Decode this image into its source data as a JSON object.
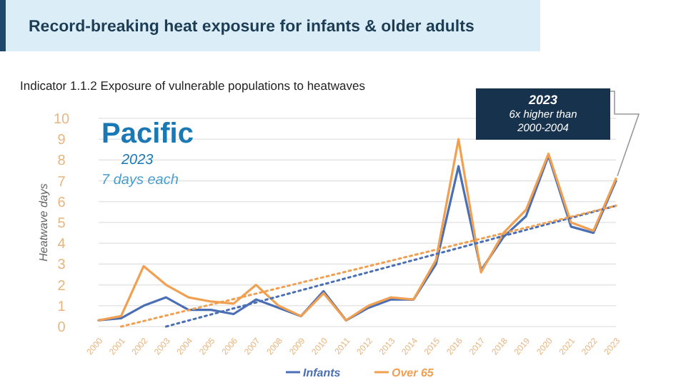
{
  "chart_data": {
    "type": "line",
    "title": "Record-breaking heat exposure for infants & older adults",
    "subtitle": "Indicator 1.1.2 Exposure of vulnerable populations to heatwaves",
    "ylabel": "Heatwave days",
    "x": [
      2000,
      2001,
      2002,
      2003,
      2004,
      2005,
      2006,
      2007,
      2008,
      2009,
      2010,
      2011,
      2012,
      2013,
      2014,
      2015,
      2016,
      2017,
      2018,
      2019,
      2020,
      2021,
      2022,
      2023
    ],
    "xlim": [
      2000,
      2023
    ],
    "xticks": [
      2000,
      2001,
      2002,
      2003,
      2004,
      2005,
      2006,
      2007,
      2008,
      2009,
      2010,
      2011,
      2012,
      2013,
      2014,
      2015,
      2016,
      2017,
      2018,
      2019,
      2020,
      2021,
      2022,
      2023
    ],
    "ylim": [
      0,
      10
    ],
    "yticks": [
      0,
      1,
      2,
      3,
      4,
      5,
      6,
      7,
      8,
      9,
      10
    ],
    "grid": "y",
    "legend": "bottom",
    "marker": "none",
    "series": [
      {
        "name": "Infants",
        "color": "#4a6fb5",
        "values": [
          0.3,
          0.4,
          1.0,
          1.4,
          0.8,
          0.8,
          0.6,
          1.3,
          0.9,
          0.5,
          1.7,
          0.3,
          0.9,
          1.3,
          1.3,
          3.0,
          7.7,
          2.7,
          4.3,
          5.3,
          8.2,
          4.8,
          4.5,
          7.0
        ]
      },
      {
        "name": "Over 65",
        "color": "#f0a050",
        "values": [
          0.3,
          0.5,
          2.9,
          2.0,
          1.4,
          1.2,
          1.1,
          2.0,
          1.0,
          0.5,
          1.6,
          0.3,
          1.0,
          1.4,
          1.3,
          3.2,
          9.0,
          2.6,
          4.5,
          5.6,
          8.3,
          5.0,
          4.6,
          7.1
        ]
      },
      {
        "color": "#4a6fb5",
        "line_style": "dotted",
        "x": [
          2003,
          2023
        ],
        "values": [
          0,
          5.8
        ]
      },
      {
        "color": "#f0a050",
        "line_style": "dotted",
        "x": [
          2001,
          2023
        ],
        "values": [
          0,
          5.8
        ]
      }
    ],
    "annotations": [
      "Pacific",
      "2023",
      "7 days each",
      "2023\n6x higher than\n2000-2004"
    ]
  }
}
